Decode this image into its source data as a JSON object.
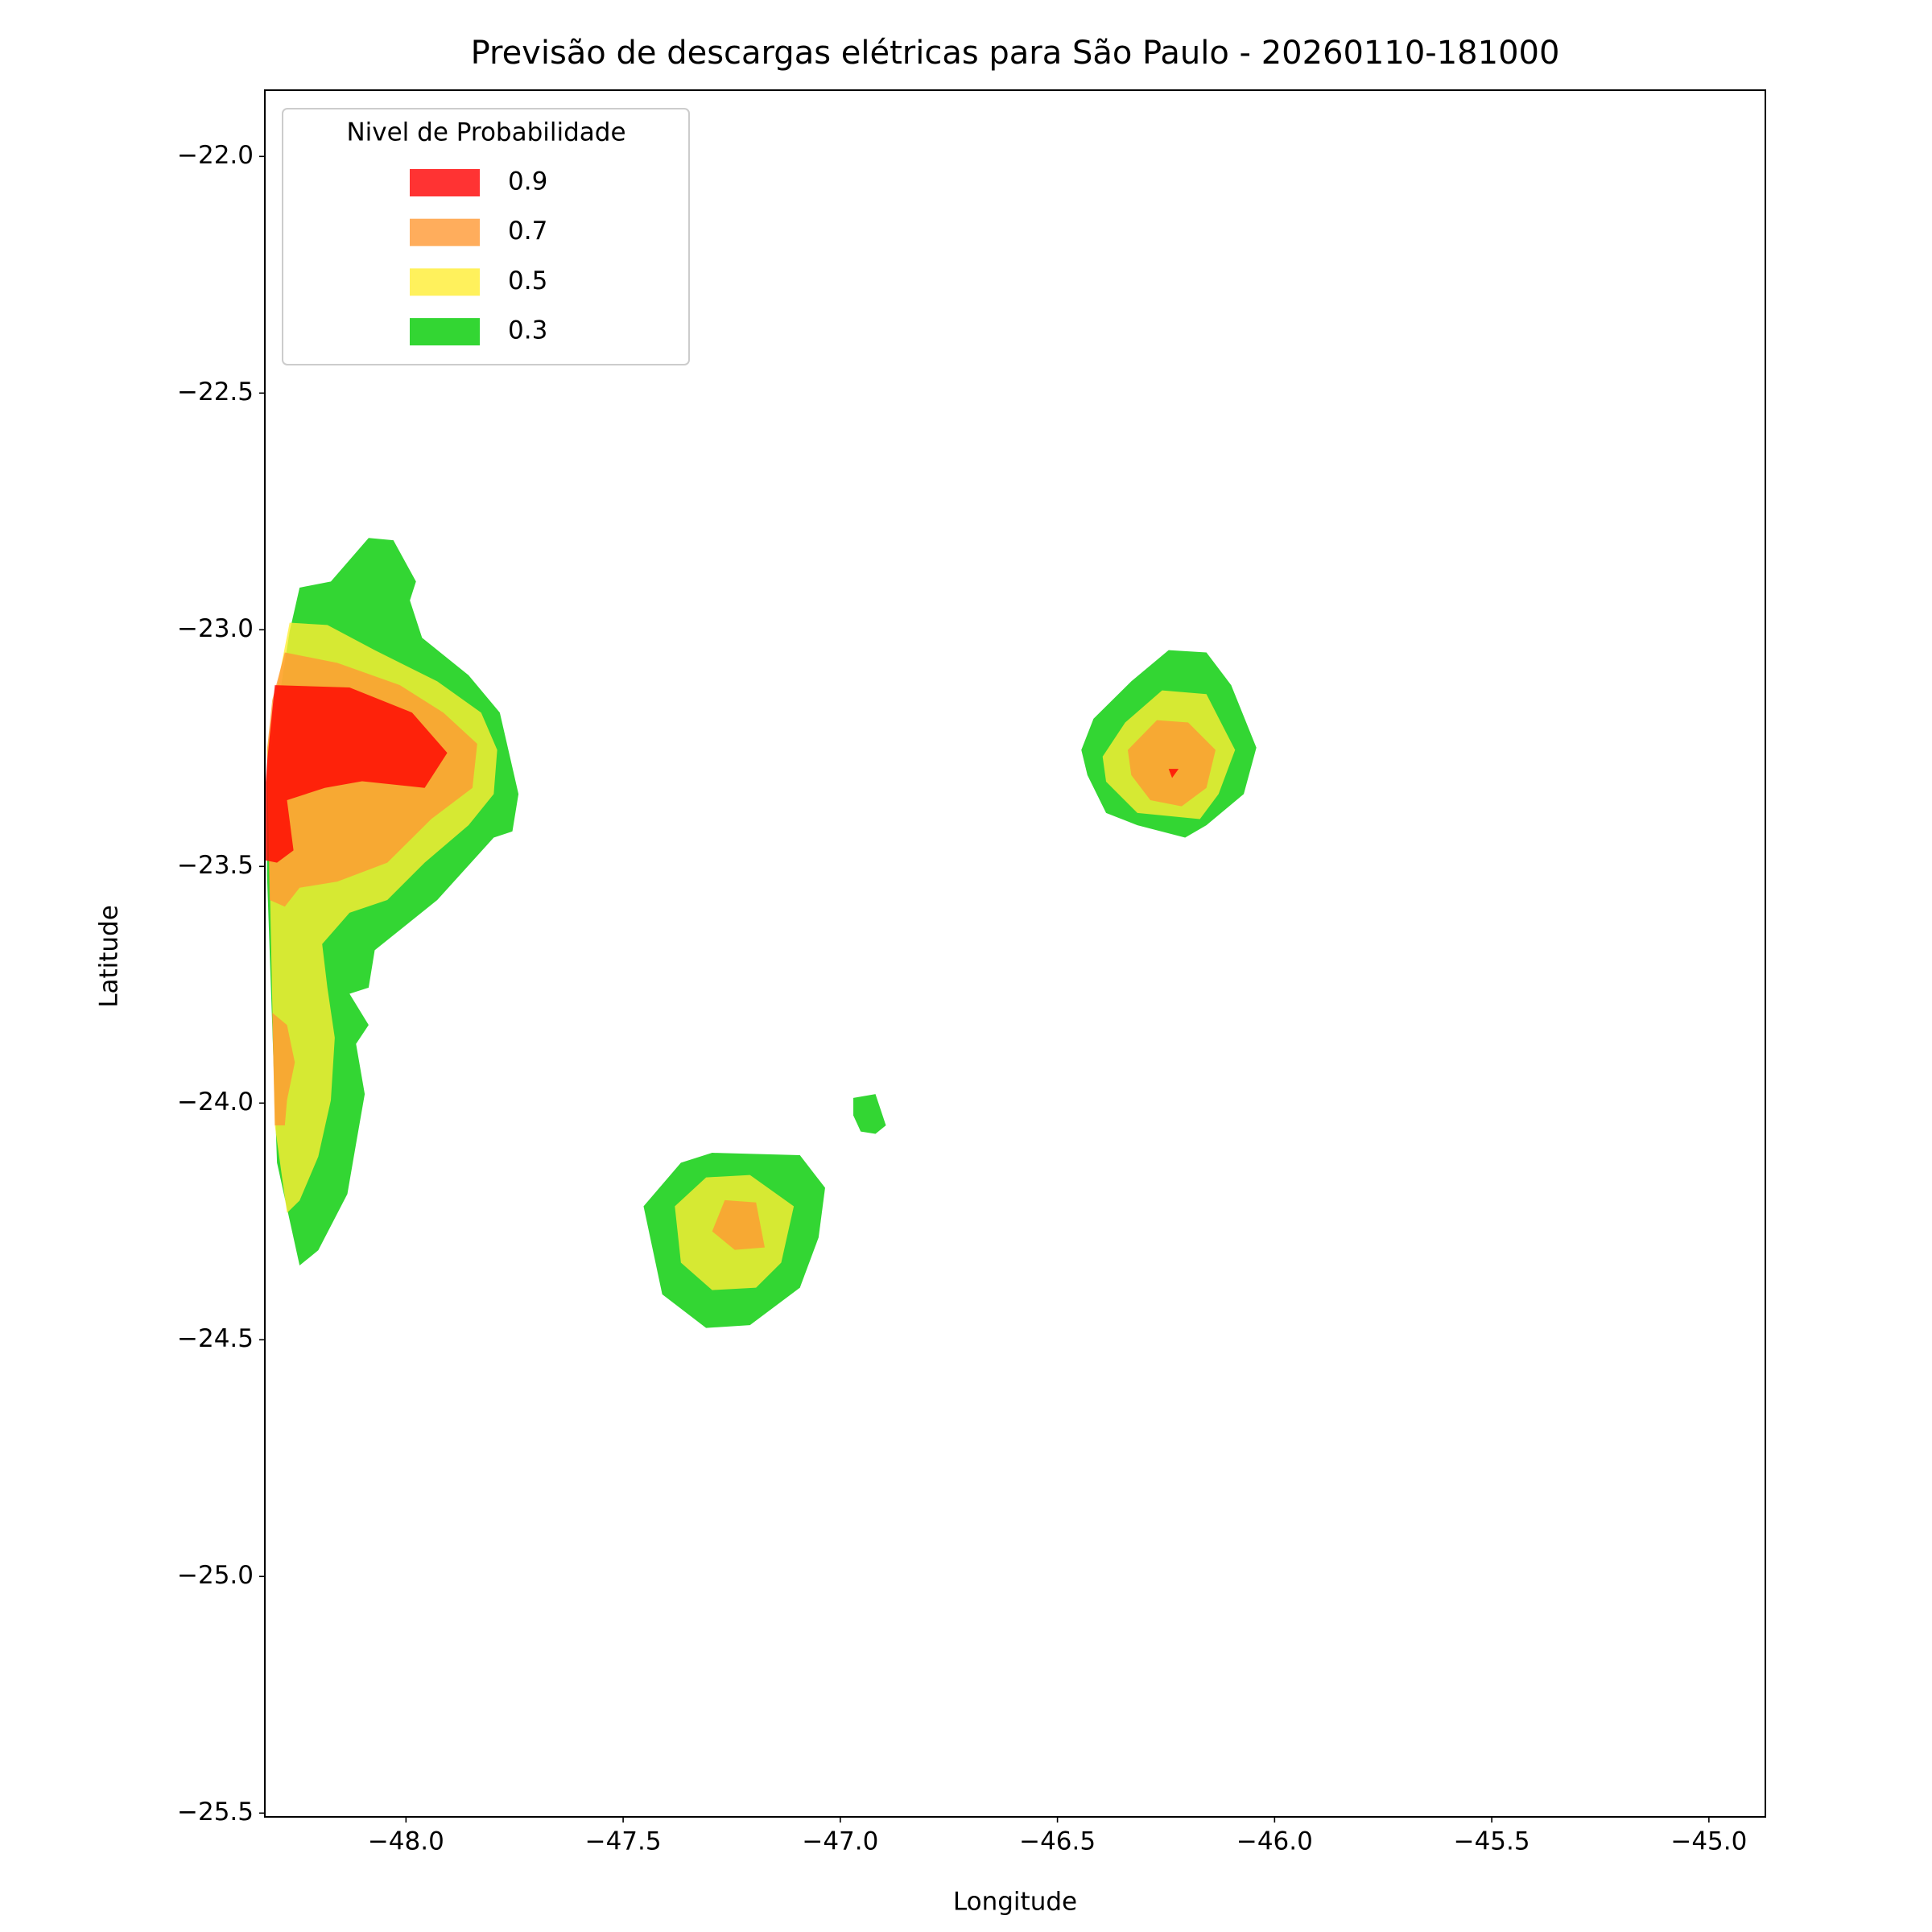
{
  "chart_data": {
    "type": "contourf",
    "title": "Previsão de descargas elétricas para São Paulo - 20260110-181000",
    "x_label": "Longitude",
    "y_label": "Latitude",
    "xlim": [
      -48.325,
      -44.87
    ],
    "ylim": [
      -25.508,
      -21.86
    ],
    "xticks": [
      {
        "value": -48.0,
        "label": "−48.0"
      },
      {
        "value": -47.5,
        "label": "−47.5"
      },
      {
        "value": -47.0,
        "label": "−47.0"
      },
      {
        "value": -46.5,
        "label": "−46.5"
      },
      {
        "value": -46.0,
        "label": "−46.0"
      },
      {
        "value": -45.5,
        "label": "−45.5"
      },
      {
        "value": -45.0,
        "label": "−45.0"
      }
    ],
    "yticks": [
      {
        "value": -22.0,
        "label": "−22.0"
      },
      {
        "value": -22.5,
        "label": "−22.5"
      },
      {
        "value": -23.0,
        "label": "−23.0"
      },
      {
        "value": -23.5,
        "label": "−23.5"
      },
      {
        "value": -24.0,
        "label": "−24.0"
      },
      {
        "value": -24.5,
        "label": "−24.5"
      },
      {
        "value": -25.0,
        "label": "−25.0"
      },
      {
        "value": -25.5,
        "label": "−25.5"
      }
    ],
    "alpha": 0.8,
    "legend": {
      "title": "Nivel de Probabilidade",
      "loc": "upper left",
      "entries": [
        {
          "level": 0.9,
          "color": "#ff0000"
        },
        {
          "level": 0.7,
          "color": "#ff9933"
        },
        {
          "level": 0.5,
          "color": "#ffee33"
        },
        {
          "level": 0.3,
          "color": "#00cc00"
        }
      ]
    },
    "regions": [
      {
        "level": 0.3,
        "lon": [
          -48.245,
          -48.297,
          -48.32,
          -48.32,
          -48.268,
          -48.245,
          -48.173,
          -48.086,
          -48.029,
          -47.977,
          -47.991,
          -47.963,
          -47.856,
          -47.784,
          -47.741,
          -47.755,
          -47.798,
          -47.928,
          -48.072,
          -48.086,
          -48.13,
          -48.086,
          -48.115,
          -48.095,
          -48.115,
          -48.135,
          -48.202
        ],
        "lat": [
          -24.343,
          -24.126,
          -23.519,
          -23.307,
          -23.004,
          -22.911,
          -22.898,
          -22.806,
          -22.811,
          -22.898,
          -22.938,
          -23.017,
          -23.096,
          -23.175,
          -23.347,
          -23.426,
          -23.439,
          -23.571,
          -23.677,
          -23.756,
          -23.769,
          -23.835,
          -23.875,
          -23.981,
          -24.086,
          -24.192,
          -24.311
        ]
      },
      {
        "level": 0.5,
        "lon": [
          -48.274,
          -48.302,
          -48.314,
          -48.32,
          -48.297,
          -48.268,
          -48.181,
          -48.072,
          -47.928,
          -47.827,
          -47.79,
          -47.798,
          -47.856,
          -47.957,
          -48.043,
          -48.13,
          -48.193,
          -48.181,
          -48.164,
          -48.173,
          -48.202,
          -48.245
        ],
        "lat": [
          -24.232,
          -24.047,
          -23.519,
          -23.254,
          -23.122,
          -22.985,
          -22.99,
          -23.043,
          -23.109,
          -23.175,
          -23.254,
          -23.347,
          -23.413,
          -23.492,
          -23.571,
          -23.598,
          -23.664,
          -23.756,
          -23.862,
          -23.994,
          -24.113,
          -24.206
        ]
      },
      {
        "level": 0.7,
        "lon": [
          -48.314,
          -48.32,
          -48.308,
          -48.279,
          -48.158,
          -48.014,
          -47.914,
          -47.836,
          -47.847,
          -47.942,
          -48.043,
          -48.158,
          -48.245,
          -48.279
        ],
        "lat": [
          -23.571,
          -23.254,
          -23.149,
          -23.048,
          -23.07,
          -23.117,
          -23.175,
          -23.241,
          -23.334,
          -23.4,
          -23.492,
          -23.532,
          -23.545,
          -23.585
        ]
      },
      {
        "level": 0.7,
        "lon": [
          -48.308,
          -48.274,
          -48.256,
          -48.274,
          -48.279,
          -48.302
        ],
        "lat": [
          -23.809,
          -23.835,
          -23.914,
          -23.994,
          -24.047,
          -24.047
        ]
      },
      {
        "level": 0.9,
        "lon": [
          -48.32,
          -48.302,
          -48.13,
          -47.986,
          -47.905,
          -47.957,
          -48.101,
          -48.187,
          -48.274,
          -48.259,
          -48.297,
          -48.325,
          -48.325
        ],
        "lat": [
          -23.281,
          -23.117,
          -23.122,
          -23.175,
          -23.26,
          -23.334,
          -23.32,
          -23.334,
          -23.36,
          -23.466,
          -23.492,
          -23.487,
          -23.347
        ]
      },
      {
        "level": 0.3,
        "lon": [
          -46.445,
          -46.417,
          -46.33,
          -46.244,
          -46.157,
          -46.1,
          -46.042,
          -46.071,
          -46.157,
          -46.206,
          -46.316,
          -46.388,
          -46.431
        ],
        "lat": [
          -23.254,
          -23.188,
          -23.109,
          -23.043,
          -23.048,
          -23.117,
          -23.249,
          -23.347,
          -23.413,
          -23.439,
          -23.413,
          -23.387,
          -23.307
        ]
      },
      {
        "level": 0.5,
        "lon": [
          -46.396,
          -46.344,
          -46.259,
          -46.157,
          -46.091,
          -46.129,
          -46.172,
          -46.316,
          -46.388
        ],
        "lat": [
          -23.268,
          -23.196,
          -23.128,
          -23.136,
          -23.254,
          -23.347,
          -23.4,
          -23.387,
          -23.321
        ]
      },
      {
        "level": 0.7,
        "lon": [
          -46.338,
          -46.271,
          -46.199,
          -46.136,
          -46.157,
          -46.214,
          -46.286,
          -46.33
        ],
        "lat": [
          -23.254,
          -23.191,
          -23.196,
          -23.254,
          -23.334,
          -23.373,
          -23.36,
          -23.307
        ]
      },
      {
        "level": 0.9,
        "lon": [
          -46.244,
          -46.221,
          -46.236
        ],
        "lat": [
          -23.294,
          -23.294,
          -23.313
        ]
      },
      {
        "level": 0.3,
        "lon": [
          -47.453,
          -47.367,
          -47.295,
          -47.093,
          -47.035,
          -47.05,
          -47.093,
          -47.208,
          -47.309,
          -47.41
        ],
        "lat": [
          -24.218,
          -24.126,
          -24.105,
          -24.11,
          -24.179,
          -24.284,
          -24.39,
          -24.469,
          -24.475,
          -24.404
        ]
      },
      {
        "level": 0.5,
        "lon": [
          -47.381,
          -47.309,
          -47.208,
          -47.107,
          -47.136,
          -47.194,
          -47.295,
          -47.367
        ],
        "lat": [
          -24.218,
          -24.157,
          -24.152,
          -24.218,
          -24.337,
          -24.39,
          -24.395,
          -24.337
        ]
      },
      {
        "level": 0.7,
        "lon": [
          -47.295,
          -47.266,
          -47.194,
          -47.174,
          -47.243
        ],
        "lat": [
          -24.271,
          -24.205,
          -24.21,
          -24.305,
          -24.31
        ]
      },
      {
        "level": 0.3,
        "lon": [
          -46.97,
          -46.919,
          -46.895,
          -46.919,
          -46.953,
          -46.97
        ],
        "lat": [
          -23.989,
          -23.981,
          -24.047,
          -24.065,
          -24.06,
          -24.026
        ]
      }
    ]
  }
}
